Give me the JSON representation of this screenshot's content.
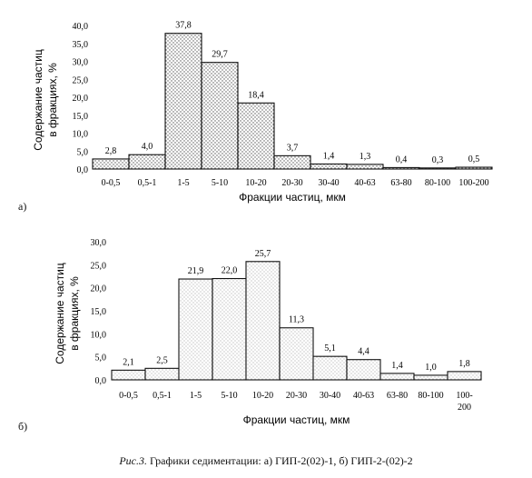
{
  "chart_data": [
    {
      "type": "bar",
      "panel_label": "а)",
      "categories": [
        "0-0,5",
        "0,5-1",
        "1-5",
        "5-10",
        "10-20",
        "20-30",
        "30-40",
        "40-63",
        "63-80",
        "80-100",
        "100-200"
      ],
      "values": [
        2.8,
        4.0,
        37.8,
        29.7,
        18.4,
        3.7,
        1.4,
        1.3,
        0.4,
        0.3,
        0.5
      ],
      "value_labels": [
        "2,8",
        "4,0",
        "37,8",
        "29,7",
        "18,4",
        "3,7",
        "1,4",
        "1,3",
        "0,4",
        "0,3",
        "0,5"
      ],
      "xlabel": "Фракции частиц, мкм",
      "ylabel_lines": [
        "Содержание частиц",
        "в фракциях, %"
      ],
      "ylim": [
        0,
        40
      ],
      "yticks": [
        "0,0",
        "5,0",
        "10,0",
        "15,0",
        "20,0",
        "25,0",
        "30,0",
        "35,0",
        "40,0"
      ],
      "grid": false
    },
    {
      "type": "bar",
      "panel_label": "б)",
      "categories": [
        "0-0,5",
        "0,5-1",
        "1-5",
        "5-10",
        "10-20",
        "20-30",
        "30-40",
        "40-63",
        "63-80",
        "80-100",
        "100-200"
      ],
      "category_label_lines": [
        [
          "0-0,5"
        ],
        [
          "0,5-1"
        ],
        [
          "1-5"
        ],
        [
          "5-10"
        ],
        [
          "10-20"
        ],
        [
          "20-30"
        ],
        [
          "30-40"
        ],
        [
          "40-63"
        ],
        [
          "63-80"
        ],
        [
          "80-100"
        ],
        [
          "100-",
          "200"
        ]
      ],
      "values": [
        2.1,
        2.5,
        21.9,
        22.0,
        25.7,
        11.3,
        5.1,
        4.4,
        1.4,
        1.0,
        1.8
      ],
      "value_labels": [
        "2,1",
        "2,5",
        "21,9",
        "22,0",
        "25,7",
        "11,3",
        "5,1",
        "4,4",
        "1,4",
        "1,0",
        "1,8"
      ],
      "xlabel": "Фракции частиц, мкм",
      "ylabel_lines": [
        "Содержание частиц",
        "в фракциях, %"
      ],
      "ylim": [
        0,
        30
      ],
      "yticks": [
        "0,0",
        "5,0",
        "10,0",
        "15,0",
        "20,0",
        "25,0",
        "30,0"
      ],
      "grid": false
    }
  ],
  "caption": {
    "lead": "Рис.3.",
    "text": " Графики седиментации: а) ГИП-2(02)-1, б) ГИП-2-(02)-2"
  }
}
